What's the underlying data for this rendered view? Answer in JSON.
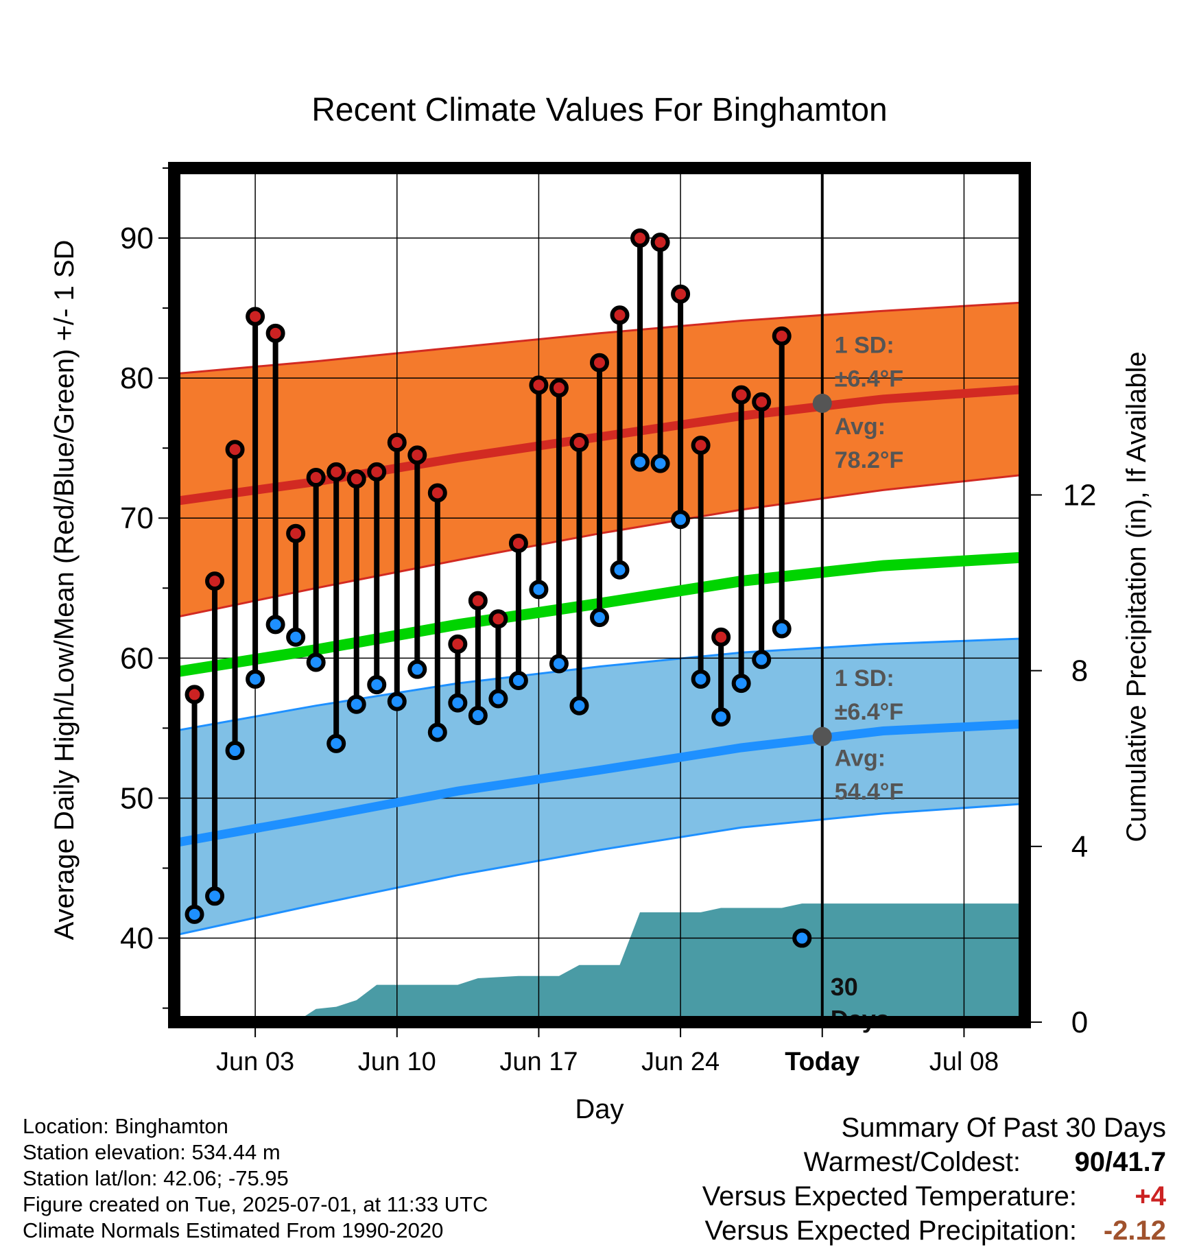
{
  "chart_data": {
    "type": "line",
    "title": "Recent Climate Values For Binghamton",
    "xlabel": "Day",
    "ylabel": "Average Daily High/Low/Mean (Red/Blue/Green) +/- 1 SD",
    "y2label": "Cumulative Precipitation (in), If Available",
    "ylim": [
      34,
      95
    ],
    "y2lim": [
      0,
      19.44
    ],
    "yticks": [
      40,
      50,
      60,
      70,
      80,
      90
    ],
    "y2ticks": [
      0,
      4,
      8,
      12
    ],
    "xlim": [
      "2025-05-30",
      "2025-07-11"
    ],
    "xticks": [
      {
        "date": "2025-06-03",
        "label": "Jun 03"
      },
      {
        "date": "2025-06-10",
        "label": "Jun 10"
      },
      {
        "date": "2025-06-17",
        "label": "Jun 17"
      },
      {
        "date": "2025-06-24",
        "label": "Jun 24"
      },
      {
        "date": "2025-07-01",
        "label": "Today"
      },
      {
        "date": "2025-07-08",
        "label": "Jul 08"
      }
    ],
    "today": "2025-07-01",
    "days": [
      "2025-05-31",
      "2025-06-01",
      "2025-06-02",
      "2025-06-03",
      "2025-06-04",
      "2025-06-05",
      "2025-06-06",
      "2025-06-07",
      "2025-06-08",
      "2025-06-09",
      "2025-06-10",
      "2025-06-11",
      "2025-06-12",
      "2025-06-13",
      "2025-06-14",
      "2025-06-15",
      "2025-06-16",
      "2025-06-17",
      "2025-06-18",
      "2025-06-19",
      "2025-06-20",
      "2025-06-21",
      "2025-06-22",
      "2025-06-23",
      "2025-06-24",
      "2025-06-25",
      "2025-06-26",
      "2025-06-27",
      "2025-06-28",
      "2025-06-29",
      "2025-06-30"
    ],
    "series": [
      {
        "name": "High",
        "color": "#cc2222",
        "values": [
          57.4,
          65.5,
          74.9,
          84.4,
          83.2,
          68.9,
          72.9,
          73.3,
          72.8,
          73.3,
          75.4,
          74.5,
          71.8,
          61.0,
          64.1,
          62.8,
          68.2,
          79.5,
          79.3,
          75.4,
          81.1,
          84.5,
          90.0,
          89.7,
          86.0,
          75.2,
          61.5,
          78.8,
          78.3,
          83.0,
          40
        ]
      },
      {
        "name": "Low",
        "color": "#1e90ff",
        "values": [
          41.7,
          43.0,
          53.4,
          58.5,
          62.4,
          61.5,
          59.7,
          53.9,
          56.7,
          58.1,
          56.9,
          59.2,
          54.7,
          56.8,
          55.9,
          57.1,
          58.4,
          64.9,
          59.6,
          56.6,
          62.9,
          66.3,
          74.0,
          73.9,
          69.9,
          58.5,
          55.8,
          58.2,
          59.9,
          62.1,
          40
        ]
      }
    ],
    "normals": {
      "dates": [
        "2025-05-30",
        "2025-06-06",
        "2025-06-13",
        "2025-06-20",
        "2025-06-27",
        "2025-07-04",
        "2025-07-11"
      ],
      "avg_high": [
        71.2,
        72.6,
        74.3,
        75.8,
        77.3,
        78.5,
        79.2
      ],
      "avg_low": [
        46.8,
        48.6,
        50.5,
        52.0,
        53.6,
        54.8,
        55.3
      ],
      "avg_mean": [
        59.0,
        60.6,
        62.4,
        63.9,
        65.5,
        66.6,
        67.2
      ],
      "high_sd_upper": [
        80.3,
        81.2,
        82.2,
        83.2,
        84.1,
        84.8,
        85.4
      ],
      "high_sd_lower": [
        62.9,
        65.0,
        67.0,
        68.9,
        70.6,
        72.0,
        73.1
      ],
      "low_sd_upper": [
        54.8,
        56.6,
        58.2,
        59.4,
        60.4,
        61.0,
        61.4
      ],
      "low_sd_lower": [
        40.2,
        42.4,
        44.5,
        46.3,
        47.9,
        48.9,
        49.6
      ],
      "colors": {
        "high_band": "#f47a2c",
        "high_line": "#d22a22",
        "low_band": "#80c0e6",
        "low_line": "#1e90ff",
        "mean_line": "#00d400"
      }
    },
    "precipitation": {
      "color": "#4a9ba5",
      "dates": [
        "2025-05-30",
        "2025-06-05",
        "2025-06-06",
        "2025-06-07",
        "2025-06-08",
        "2025-06-09",
        "2025-06-10",
        "2025-06-13",
        "2025-06-14",
        "2025-06-16",
        "2025-06-18",
        "2025-06-19",
        "2025-06-21",
        "2025-06-22",
        "2025-06-25",
        "2025-06-26",
        "2025-06-29",
        "2025-06-30",
        "2025-07-11"
      ],
      "values": [
        0,
        0,
        0.3,
        0.35,
        0.5,
        0.85,
        0.85,
        0.85,
        1.0,
        1.05,
        1.05,
        1.3,
        1.3,
        2.5,
        2.5,
        2.6,
        2.6,
        2.7,
        2.7
      ]
    },
    "annotations": {
      "high_sd_label": "1 SD:",
      "high_sd_value": "±6.4°F",
      "high_avg_label": "Avg:",
      "high_avg_value": "78.2°F",
      "low_sd_label": "1 SD:",
      "low_sd_value": "±6.4°F",
      "low_avg_label": "Avg:",
      "low_avg_value": "54.4°F",
      "days_count": "30",
      "days_word": "Days",
      "today_avg_high": 78.2,
      "today_avg_low": 54.4
    }
  },
  "info": {
    "location": "Location: Binghamton",
    "elevation": "Station elevation: 534.44 m",
    "latlon": "Station lat/lon: 42.06; -75.95",
    "created": "Figure created on Tue, 2025-07-01, at 11:33 UTC",
    "normals": "Climate Normals Estimated From 1990-2020"
  },
  "summary": {
    "title": "Summary Of Past 30 Days",
    "warm_cold_label": "Warmest/Coldest:",
    "warm_cold_value": "90/41.7",
    "temp_label": "Versus Expected Temperature:",
    "temp_value": "+4",
    "precip_label": "Versus Expected Precipitation:",
    "precip_value": "-2.12",
    "temp_color": "#cc2222",
    "precip_color": "#a0522d"
  }
}
